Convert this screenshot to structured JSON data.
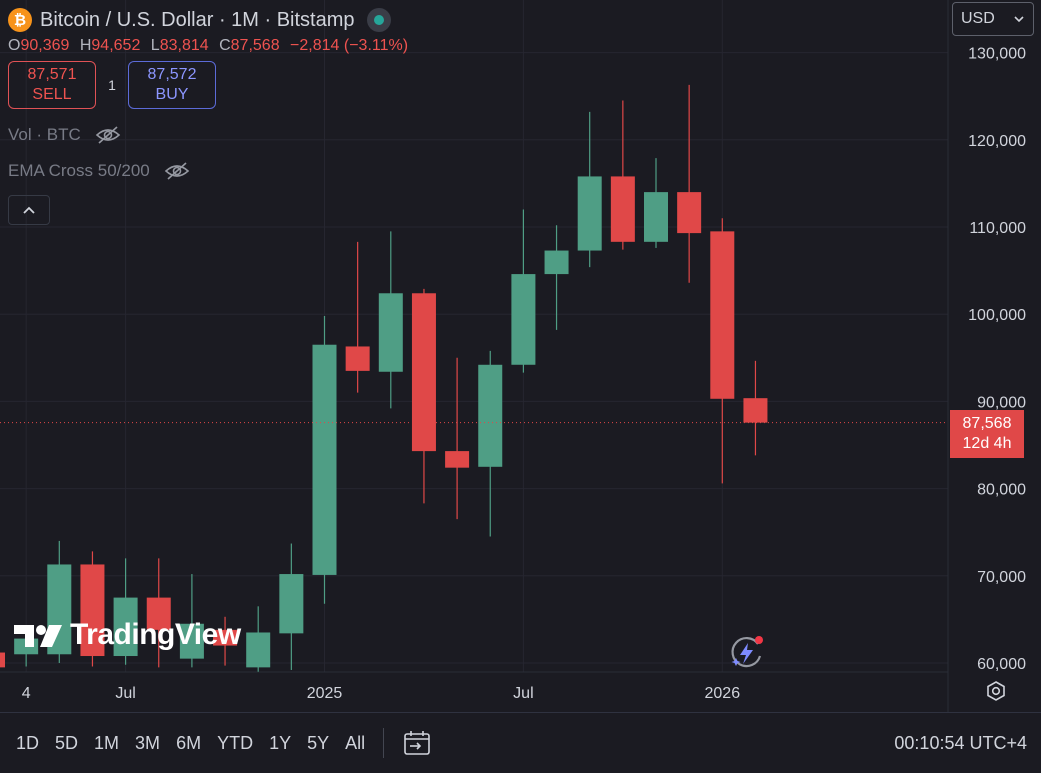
{
  "header": {
    "symbol_title": "Bitcoin / U.S. Dollar · 1M · Bitstamp",
    "coin_symbol": "₿",
    "ohlc": [
      {
        "key": "O",
        "value": "90,369"
      },
      {
        "key": "H",
        "value": "94,652"
      },
      {
        "key": "L",
        "value": "83,814"
      },
      {
        "key": "C",
        "value": "87,568"
      }
    ],
    "change": "−2,814 (−3.11%)"
  },
  "trade": {
    "sell_price": "87,571",
    "sell_label": "SELL",
    "quantity": "1",
    "buy_price": "87,572",
    "buy_label": "BUY"
  },
  "indicators": [
    {
      "label": "Vol · BTC",
      "icon": "eye-hidden-icon"
    },
    {
      "label": "EMA Cross 50/200",
      "icon": "eye-hidden-icon"
    }
  ],
  "currency_selector": {
    "value": "USD",
    "icon": "chevron-down-icon"
  },
  "price_label": {
    "price": "87,568",
    "countdown": "12d 4h"
  },
  "watermark": "TradingView",
  "toolbar": {
    "ranges": [
      "1D",
      "5D",
      "1M",
      "3M",
      "6M",
      "YTD",
      "1Y",
      "5Y",
      "All"
    ],
    "clock": "00:10:54 UTC+4"
  },
  "colors": {
    "up": "#4f9e85",
    "down": "#e04848",
    "background": "#1b1b22",
    "grid": "#262630"
  },
  "chart_data": {
    "type": "candlestick",
    "interval": "1M",
    "ylim": [
      59000,
      133000
    ],
    "y_ticks": [
      60000,
      70000,
      80000,
      90000,
      100000,
      110000,
      120000,
      130000
    ],
    "y_tick_labels": [
      "60,000",
      "70,000",
      "80,000",
      "90,000",
      "100,000",
      "110,000",
      "120,000",
      "130,000"
    ],
    "x_tick_labels": [
      {
        "label": "4",
        "month": "2024-04"
      },
      {
        "label": "Jul",
        "month": "2024-07"
      },
      {
        "label": "2025",
        "month": "2025-01"
      },
      {
        "label": "Jul",
        "month": "2025-07"
      },
      {
        "label": "2026",
        "month": "2026-01"
      }
    ],
    "current_price": 87568,
    "candles": [
      {
        "month": "2024-03",
        "open": 61200,
        "high": 62800,
        "low": 59200,
        "close": 59500
      },
      {
        "month": "2024-04",
        "open": 61000,
        "high": 63500,
        "low": 59600,
        "close": 62800
      },
      {
        "month": "2024-05",
        "open": 61000,
        "high": 74000,
        "low": 60000,
        "close": 71300
      },
      {
        "month": "2024-06",
        "open": 71300,
        "high": 72800,
        "low": 59600,
        "close": 60800
      },
      {
        "month": "2024-07",
        "open": 60800,
        "high": 72000,
        "low": 59800,
        "close": 67500
      },
      {
        "month": "2024-08",
        "open": 67500,
        "high": 72000,
        "low": 59500,
        "close": 63800
      },
      {
        "month": "2024-09",
        "open": 60500,
        "high": 70200,
        "low": 59500,
        "close": 64500
      },
      {
        "month": "2024-10",
        "open": 63800,
        "high": 65300,
        "low": 59700,
        "close": 62000
      },
      {
        "month": "2024-11",
        "open": 59500,
        "high": 66500,
        "low": 59000,
        "close": 63500
      },
      {
        "month": "2024-12",
        "open": 63400,
        "high": 73700,
        "low": 59200,
        "close": 70200
      },
      {
        "month": "2025-01",
        "open": 70100,
        "high": 99800,
        "low": 66800,
        "close": 96500
      },
      {
        "month": "2025-02",
        "open": 96300,
        "high": 108300,
        "low": 91000,
        "close": 93500
      },
      {
        "month": "2025-03",
        "open": 93400,
        "high": 109500,
        "low": 89200,
        "close": 102400
      },
      {
        "month": "2025-04",
        "open": 102400,
        "high": 102900,
        "low": 78300,
        "close": 84300
      },
      {
        "month": "2025-05",
        "open": 84300,
        "high": 95000,
        "low": 76500,
        "close": 82400
      },
      {
        "month": "2025-06",
        "open": 82500,
        "high": 95800,
        "low": 74500,
        "close": 94200
      },
      {
        "month": "2025-07",
        "open": 94200,
        "high": 112000,
        "low": 93300,
        "close": 104600
      },
      {
        "month": "2025-08",
        "open": 104600,
        "high": 110200,
        "low": 98200,
        "close": 107300
      },
      {
        "month": "2025-09",
        "open": 107300,
        "high": 123200,
        "low": 105400,
        "close": 115800
      },
      {
        "month": "2025-10",
        "open": 115800,
        "high": 124500,
        "low": 107400,
        "close": 108300
      },
      {
        "month": "2025-11",
        "open": 108300,
        "high": 117900,
        "low": 107600,
        "close": 114000
      },
      {
        "month": "2025-12",
        "open": 114000,
        "high": 126300,
        "low": 103600,
        "close": 109300
      },
      {
        "month": "2026-01",
        "open": 109500,
        "high": 111000,
        "low": 80600,
        "close": 90300
      },
      {
        "month": "2026-02",
        "open": 90369,
        "high": 94652,
        "low": 83814,
        "close": 87568
      }
    ]
  }
}
